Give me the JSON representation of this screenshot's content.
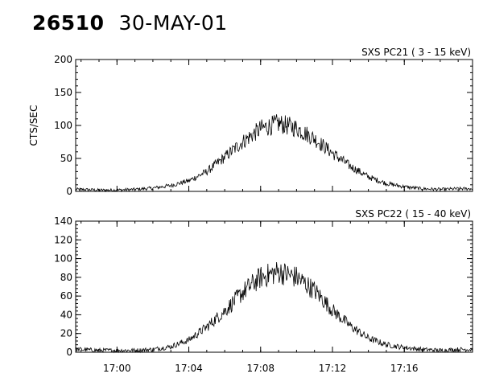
{
  "header": {
    "event_id": "26510",
    "date": "30-MAY-01"
  },
  "chart_data": [
    {
      "type": "line",
      "title": "SXS PC21  (  3 - 15 keV)",
      "ylabel": "CTS/SEC",
      "xlabel": "",
      "ylim": [
        0,
        200
      ],
      "yticks": [
        0,
        50,
        100,
        150,
        200
      ],
      "xlim_minutes": [
        -2.3,
        19.8
      ],
      "xticks": [
        "17:00",
        "17:04",
        "17:08",
        "17:12",
        "17:16"
      ],
      "x_tick_labels_shown": false,
      "grid": false,
      "series": [
        {
          "x": [
            "16:58",
            "16:59",
            "17:00",
            "17:01",
            "17:02",
            "17:03",
            "17:04",
            "17:05",
            "17:06",
            "17:07",
            "17:08",
            "17:09",
            "17:10",
            "17:11",
            "17:12",
            "17:13",
            "17:14",
            "17:15",
            "17:16",
            "17:17",
            "17:18",
            "17:19"
          ],
          "values": [
            3,
            2,
            2,
            3,
            5,
            9,
            16,
            30,
            52,
            75,
            95,
            103,
            96,
            80,
            58,
            38,
            22,
            12,
            7,
            4,
            3,
            4
          ]
        }
      ]
    },
    {
      "type": "line",
      "title": "SXS PC22  ( 15 - 40 keV)",
      "ylabel": "",
      "xlabel": "",
      "ylim": [
        0,
        140
      ],
      "yticks": [
        0,
        20,
        40,
        60,
        80,
        100,
        120,
        140
      ],
      "xlim_minutes": [
        -2.3,
        19.8
      ],
      "xticks": [
        "17:00",
        "17:04",
        "17:08",
        "17:12",
        "17:16"
      ],
      "x_tick_labels_shown": true,
      "grid": false,
      "series": [
        {
          "x": [
            "16:58",
            "16:59",
            "17:00",
            "17:01",
            "17:02",
            "17:03",
            "17:04",
            "17:05",
            "17:06",
            "17:07",
            "17:08",
            "17:09",
            "17:10",
            "17:11",
            "17:12",
            "17:13",
            "17:14",
            "17:15",
            "17:16",
            "17:17",
            "17:18",
            "17:19"
          ],
          "values": [
            3,
            2,
            2,
            2,
            3,
            6,
            13,
            27,
            44,
            64,
            80,
            86,
            80,
            66,
            45,
            28,
            15,
            8,
            5,
            3,
            2,
            3
          ]
        }
      ]
    }
  ]
}
